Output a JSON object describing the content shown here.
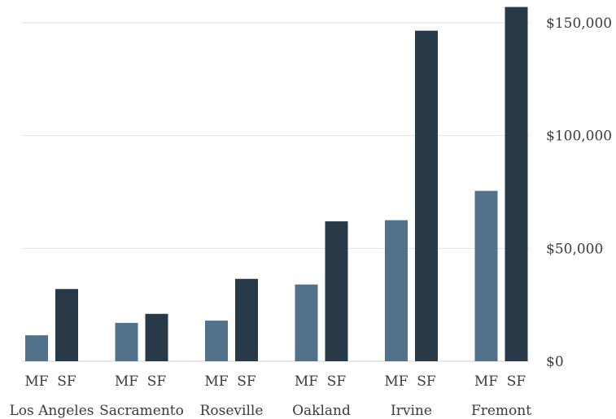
{
  "chart_data": {
    "type": "bar",
    "title": "",
    "xlabel": "",
    "ylabel": "",
    "y_axis_position": "right",
    "grid": true,
    "ylim": [
      0,
      160000
    ],
    "yticks": [
      0,
      50000,
      100000,
      150000
    ],
    "ytick_labels": [
      "$0",
      "$50,000",
      "$100,000",
      "$150,000"
    ],
    "bar_labels": [
      "MF",
      "SF"
    ],
    "categories": [
      "Los Angeles",
      "Sacramento",
      "Roseville",
      "Oakland",
      "Irvine",
      "Fremont"
    ],
    "series": [
      {
        "name": "MF",
        "color": "#52718a",
        "values": [
          11500,
          17000,
          18000,
          34000,
          62500,
          75500
        ]
      },
      {
        "name": "SF",
        "color": "#283a48",
        "values": [
          32000,
          21000,
          36500,
          62000,
          146500,
          157000
        ]
      }
    ]
  }
}
